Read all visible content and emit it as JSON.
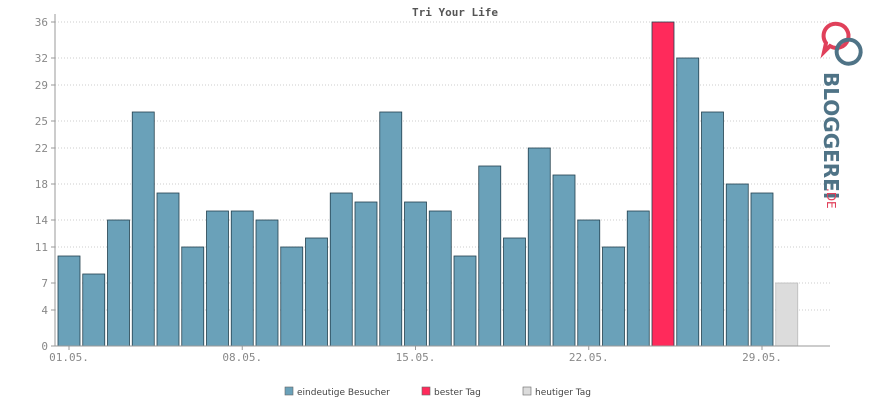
{
  "chart_data": {
    "type": "bar",
    "title": "Tri Your Life",
    "categories": [
      "01.05.",
      "02.05.",
      "03.05.",
      "04.05.",
      "05.05.",
      "06.05.",
      "07.05.",
      "08.05.",
      "09.05.",
      "10.05.",
      "11.05.",
      "12.05.",
      "13.05.",
      "14.05.",
      "15.05.",
      "16.05.",
      "17.05.",
      "18.05.",
      "19.05.",
      "20.05.",
      "21.05.",
      "22.05.",
      "23.05.",
      "24.05.",
      "25.05.",
      "26.05.",
      "27.05.",
      "28.05.",
      "29.05.",
      "30.05."
    ],
    "values": [
      10,
      8,
      14,
      26,
      17,
      11,
      15,
      15,
      14,
      11,
      12,
      17,
      16,
      26,
      16,
      15,
      10,
      20,
      12,
      22,
      19,
      14,
      11,
      15,
      36,
      32,
      26,
      18,
      17,
      7
    ],
    "bar_types": [
      "normal",
      "normal",
      "normal",
      "normal",
      "normal",
      "normal",
      "normal",
      "normal",
      "normal",
      "normal",
      "normal",
      "normal",
      "normal",
      "normal",
      "normal",
      "normal",
      "normal",
      "normal",
      "normal",
      "normal",
      "normal",
      "normal",
      "normal",
      "normal",
      "best",
      "normal",
      "normal",
      "normal",
      "normal",
      "today"
    ],
    "x_tick_labels": [
      "01.05.",
      "08.05.",
      "15.05.",
      "22.05.",
      "29.05."
    ],
    "x_tick_indices": [
      0,
      7,
      14,
      21,
      28
    ],
    "y_ticks": [
      0,
      4,
      7,
      11,
      14,
      18,
      22,
      25,
      29,
      32,
      36
    ],
    "ylim": [
      0,
      36
    ],
    "grid": true,
    "legend_position": "bottom",
    "legend": [
      {
        "label": "eindeutige Besucher",
        "type": "normal"
      },
      {
        "label": "bester Tag",
        "type": "best"
      },
      {
        "label": "heutiger Tag",
        "type": "today"
      }
    ],
    "colors": {
      "normal": "#6aa1b9",
      "best": "#ff2a5b",
      "today": "#dcdcdc",
      "grid": "#cccccc",
      "axis": "#999999"
    }
  },
  "branding": {
    "logo_text": "BLOGGEREI",
    "logo_suffix": ".DE",
    "logo_color": "#4f7386",
    "logo_accent": "#e0405a"
  }
}
